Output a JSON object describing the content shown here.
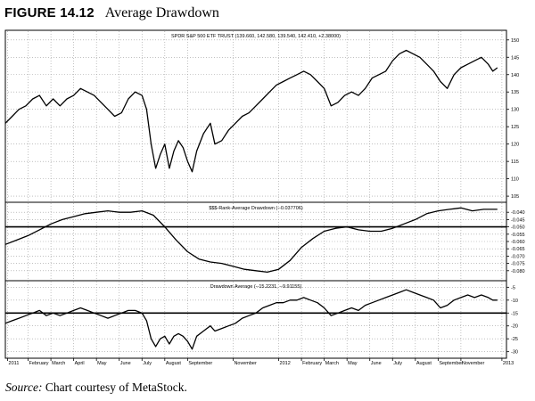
{
  "figure": {
    "label": "FIGURE 14.12",
    "title": "Average Drawdown",
    "source_label": "Source:",
    "source_text": "Chart courtesy of MetaStock."
  },
  "chart_data": [
    {
      "type": "line",
      "panel": "price",
      "title": "SPDR S&P 500 ETF TRUST (139.660, 142.580, 139.540, 142.410, +2.38000)",
      "ylim": [
        104,
        152
      ],
      "yticks": [
        105,
        110,
        115,
        120,
        125,
        130,
        135,
        140,
        145,
        150
      ],
      "ytick_labels": [
        "105",
        "110",
        "115",
        "120",
        "125",
        "130",
        "135",
        "140",
        "145",
        "150"
      ],
      "grid": true,
      "series": [
        {
          "values": [
            {
              "x": 0,
              "y": 126
            },
            {
              "x": 0.3,
              "y": 128
            },
            {
              "x": 0.6,
              "y": 130
            },
            {
              "x": 0.9,
              "y": 131
            },
            {
              "x": 1.2,
              "y": 133
            },
            {
              "x": 1.5,
              "y": 134
            },
            {
              "x": 1.8,
              "y": 131
            },
            {
              "x": 2.1,
              "y": 133
            },
            {
              "x": 2.4,
              "y": 131
            },
            {
              "x": 2.7,
              "y": 133
            },
            {
              "x": 3.0,
              "y": 134
            },
            {
              "x": 3.3,
              "y": 136
            },
            {
              "x": 3.6,
              "y": 135
            },
            {
              "x": 3.9,
              "y": 134
            },
            {
              "x": 4.2,
              "y": 132
            },
            {
              "x": 4.5,
              "y": 130
            },
            {
              "x": 4.8,
              "y": 128
            },
            {
              "x": 5.1,
              "y": 129
            },
            {
              "x": 5.4,
              "y": 133
            },
            {
              "x": 5.7,
              "y": 135
            },
            {
              "x": 6.0,
              "y": 134
            },
            {
              "x": 6.2,
              "y": 130
            },
            {
              "x": 6.4,
              "y": 120
            },
            {
              "x": 6.6,
              "y": 113
            },
            {
              "x": 6.8,
              "y": 117
            },
            {
              "x": 7.0,
              "y": 120
            },
            {
              "x": 7.2,
              "y": 113
            },
            {
              "x": 7.4,
              "y": 118
            },
            {
              "x": 7.6,
              "y": 121
            },
            {
              "x": 7.8,
              "y": 119
            },
            {
              "x": 8.0,
              "y": 115
            },
            {
              "x": 8.2,
              "y": 112
            },
            {
              "x": 8.4,
              "y": 118
            },
            {
              "x": 8.7,
              "y": 123
            },
            {
              "x": 9.0,
              "y": 126
            },
            {
              "x": 9.2,
              "y": 120
            },
            {
              "x": 9.5,
              "y": 121
            },
            {
              "x": 9.8,
              "y": 124
            },
            {
              "x": 10.1,
              "y": 126
            },
            {
              "x": 10.4,
              "y": 128
            },
            {
              "x": 10.7,
              "y": 129
            },
            {
              "x": 11.0,
              "y": 131
            },
            {
              "x": 11.3,
              "y": 133
            },
            {
              "x": 11.6,
              "y": 135
            },
            {
              "x": 11.9,
              "y": 137
            },
            {
              "x": 12.2,
              "y": 138
            },
            {
              "x": 12.5,
              "y": 139
            },
            {
              "x": 12.8,
              "y": 140
            },
            {
              "x": 13.1,
              "y": 141
            },
            {
              "x": 13.4,
              "y": 140
            },
            {
              "x": 13.7,
              "y": 138
            },
            {
              "x": 14.0,
              "y": 136
            },
            {
              "x": 14.3,
              "y": 131
            },
            {
              "x": 14.6,
              "y": 132
            },
            {
              "x": 14.9,
              "y": 134
            },
            {
              "x": 15.2,
              "y": 135
            },
            {
              "x": 15.5,
              "y": 134
            },
            {
              "x": 15.8,
              "y": 136
            },
            {
              "x": 16.1,
              "y": 139
            },
            {
              "x": 16.4,
              "y": 140
            },
            {
              "x": 16.7,
              "y": 141
            },
            {
              "x": 17.0,
              "y": 144
            },
            {
              "x": 17.3,
              "y": 146
            },
            {
              "x": 17.6,
              "y": 147
            },
            {
              "x": 17.9,
              "y": 146
            },
            {
              "x": 18.2,
              "y": 145
            },
            {
              "x": 18.5,
              "y": 143
            },
            {
              "x": 18.8,
              "y": 141
            },
            {
              "x": 19.1,
              "y": 138
            },
            {
              "x": 19.4,
              "y": 136
            },
            {
              "x": 19.7,
              "y": 140
            },
            {
              "x": 20.0,
              "y": 142
            },
            {
              "x": 20.3,
              "y": 143
            },
            {
              "x": 20.6,
              "y": 144
            },
            {
              "x": 20.9,
              "y": 145
            },
            {
              "x": 21.2,
              "y": 143
            },
            {
              "x": 21.4,
              "y": 141
            },
            {
              "x": 21.6,
              "y": 142
            }
          ]
        }
      ]
    },
    {
      "type": "line",
      "panel": "rank",
      "title": "$$$-Rank-Average Drawdown (--0.037706)",
      "ylim": [
        -0.085,
        -0.035
      ],
      "yticks": [
        -0.04,
        -0.045,
        -0.05,
        -0.055,
        -0.06,
        -0.065,
        -0.07,
        -0.075,
        -0.08
      ],
      "ytick_labels": [
        "-0.040",
        "-0.045",
        "-0.050",
        "-0.055",
        "-0.060",
        "-0.065",
        "-0.070",
        "-0.075",
        "-0.080"
      ],
      "reference_line": -0.05,
      "grid": true,
      "series": [
        {
          "values": [
            {
              "x": 0,
              "y": -0.062
            },
            {
              "x": 0.5,
              "y": -0.059
            },
            {
              "x": 1.0,
              "y": -0.056
            },
            {
              "x": 1.5,
              "y": -0.052
            },
            {
              "x": 2.0,
              "y": -0.048
            },
            {
              "x": 2.5,
              "y": -0.045
            },
            {
              "x": 3.0,
              "y": -0.043
            },
            {
              "x": 3.5,
              "y": -0.041
            },
            {
              "x": 4.0,
              "y": -0.04
            },
            {
              "x": 4.5,
              "y": -0.039
            },
            {
              "x": 5.0,
              "y": -0.04
            },
            {
              "x": 5.5,
              "y": -0.04
            },
            {
              "x": 6.0,
              "y": -0.039
            },
            {
              "x": 6.5,
              "y": -0.042
            },
            {
              "x": 7.0,
              "y": -0.05
            },
            {
              "x": 7.5,
              "y": -0.059
            },
            {
              "x": 8.0,
              "y": -0.067
            },
            {
              "x": 8.5,
              "y": -0.072
            },
            {
              "x": 9.0,
              "y": -0.074
            },
            {
              "x": 9.5,
              "y": -0.075
            },
            {
              "x": 10.0,
              "y": -0.077
            },
            {
              "x": 10.5,
              "y": -0.079
            },
            {
              "x": 11.0,
              "y": -0.08
            },
            {
              "x": 11.5,
              "y": -0.081
            },
            {
              "x": 12.0,
              "y": -0.079
            },
            {
              "x": 12.5,
              "y": -0.073
            },
            {
              "x": 13.0,
              "y": -0.064
            },
            {
              "x": 13.5,
              "y": -0.058
            },
            {
              "x": 14.0,
              "y": -0.053
            },
            {
              "x": 14.5,
              "y": -0.051
            },
            {
              "x": 15.0,
              "y": -0.05
            },
            {
              "x": 15.5,
              "y": -0.052
            },
            {
              "x": 16.0,
              "y": -0.053
            },
            {
              "x": 16.5,
              "y": -0.053
            },
            {
              "x": 17.0,
              "y": -0.051
            },
            {
              "x": 17.5,
              "y": -0.048
            },
            {
              "x": 18.0,
              "y": -0.045
            },
            {
              "x": 18.5,
              "y": -0.041
            },
            {
              "x": 19.0,
              "y": -0.039
            },
            {
              "x": 19.5,
              "y": -0.038
            },
            {
              "x": 20.0,
              "y": -0.037
            },
            {
              "x": 20.5,
              "y": -0.039
            },
            {
              "x": 21.0,
              "y": -0.038
            },
            {
              "x": 21.6,
              "y": -0.038
            }
          ]
        }
      ]
    },
    {
      "type": "line",
      "panel": "drawdown",
      "title": "Drawdown Average (--15.2231, --9.91155)",
      "ylim": [
        -31.5,
        -3.5
      ],
      "yticks": [
        -5,
        -10,
        -15,
        -20,
        -25,
        -30
      ],
      "ytick_labels": [
        "-5",
        "-10",
        "-15",
        "-20",
        "-25",
        "-30"
      ],
      "reference_line": -15,
      "grid": true,
      "series": [
        {
          "values": [
            {
              "x": 0,
              "y": -19
            },
            {
              "x": 0.3,
              "y": -18
            },
            {
              "x": 0.6,
              "y": -17
            },
            {
              "x": 0.9,
              "y": -16
            },
            {
              "x": 1.2,
              "y": -15
            },
            {
              "x": 1.5,
              "y": -14
            },
            {
              "x": 1.8,
              "y": -16
            },
            {
              "x": 2.1,
              "y": -15
            },
            {
              "x": 2.4,
              "y": -16
            },
            {
              "x": 2.7,
              "y": -15
            },
            {
              "x": 3.0,
              "y": -14
            },
            {
              "x": 3.3,
              "y": -13
            },
            {
              "x": 3.6,
              "y": -14
            },
            {
              "x": 3.9,
              "y": -15
            },
            {
              "x": 4.2,
              "y": -16
            },
            {
              "x": 4.5,
              "y": -17
            },
            {
              "x": 4.8,
              "y": -16
            },
            {
              "x": 5.1,
              "y": -15
            },
            {
              "x": 5.4,
              "y": -14
            },
            {
              "x": 5.7,
              "y": -14
            },
            {
              "x": 6.0,
              "y": -15
            },
            {
              "x": 6.2,
              "y": -18
            },
            {
              "x": 6.4,
              "y": -25
            },
            {
              "x": 6.6,
              "y": -28
            },
            {
              "x": 6.8,
              "y": -25
            },
            {
              "x": 7.0,
              "y": -24
            },
            {
              "x": 7.2,
              "y": -27
            },
            {
              "x": 7.4,
              "y": -24
            },
            {
              "x": 7.6,
              "y": -23
            },
            {
              "x": 7.8,
              "y": -24
            },
            {
              "x": 8.0,
              "y": -26
            },
            {
              "x": 8.2,
              "y": -29
            },
            {
              "x": 8.4,
              "y": -24
            },
            {
              "x": 8.7,
              "y": -22
            },
            {
              "x": 9.0,
              "y": -20
            },
            {
              "x": 9.2,
              "y": -22
            },
            {
              "x": 9.5,
              "y": -21
            },
            {
              "x": 9.8,
              "y": -20
            },
            {
              "x": 10.1,
              "y": -19
            },
            {
              "x": 10.4,
              "y": -17
            },
            {
              "x": 10.7,
              "y": -16
            },
            {
              "x": 11.0,
              "y": -15
            },
            {
              "x": 11.3,
              "y": -13
            },
            {
              "x": 11.6,
              "y": -12
            },
            {
              "x": 11.9,
              "y": -11
            },
            {
              "x": 12.2,
              "y": -11
            },
            {
              "x": 12.5,
              "y": -10
            },
            {
              "x": 12.8,
              "y": -10
            },
            {
              "x": 13.1,
              "y": -9
            },
            {
              "x": 13.4,
              "y": -10
            },
            {
              "x": 13.7,
              "y": -11
            },
            {
              "x": 14.0,
              "y": -13
            },
            {
              "x": 14.3,
              "y": -16
            },
            {
              "x": 14.6,
              "y": -15
            },
            {
              "x": 14.9,
              "y": -14
            },
            {
              "x": 15.2,
              "y": -13
            },
            {
              "x": 15.5,
              "y": -14
            },
            {
              "x": 15.8,
              "y": -12
            },
            {
              "x": 16.1,
              "y": -11
            },
            {
              "x": 16.4,
              "y": -10
            },
            {
              "x": 16.7,
              "y": -9
            },
            {
              "x": 17.0,
              "y": -8
            },
            {
              "x": 17.3,
              "y": -7
            },
            {
              "x": 17.6,
              "y": -6
            },
            {
              "x": 17.9,
              "y": -7
            },
            {
              "x": 18.2,
              "y": -8
            },
            {
              "x": 18.5,
              "y": -9
            },
            {
              "x": 18.8,
              "y": -10
            },
            {
              "x": 19.1,
              "y": -13
            },
            {
              "x": 19.4,
              "y": -12
            },
            {
              "x": 19.7,
              "y": -10
            },
            {
              "x": 20.0,
              "y": -9
            },
            {
              "x": 20.3,
              "y": -8
            },
            {
              "x": 20.6,
              "y": -9
            },
            {
              "x": 20.9,
              "y": -8
            },
            {
              "x": 21.2,
              "y": -9
            },
            {
              "x": 21.4,
              "y": -10
            },
            {
              "x": 21.6,
              "y": -10
            }
          ]
        }
      ]
    }
  ],
  "x_axis": {
    "x_unit": "months since Jan 2011",
    "xlim": [
      0,
      22
    ],
    "tick_labels": [
      {
        "x": 0.1,
        "label": "2011"
      },
      {
        "x": 1.0,
        "label": "February"
      },
      {
        "x": 2.0,
        "label": "March"
      },
      {
        "x": 3.0,
        "label": "April"
      },
      {
        "x": 4.0,
        "label": "May"
      },
      {
        "x": 5.0,
        "label": "June"
      },
      {
        "x": 6.0,
        "label": "July"
      },
      {
        "x": 7.0,
        "label": "August"
      },
      {
        "x": 8.0,
        "label": "September"
      },
      {
        "x": 10.0,
        "label": "November"
      },
      {
        "x": 12.0,
        "label": "2012"
      },
      {
        "x": 13.0,
        "label": "February"
      },
      {
        "x": 14.0,
        "label": "March"
      },
      {
        "x": 15.0,
        "label": "May"
      },
      {
        "x": 16.0,
        "label": "June"
      },
      {
        "x": 17.0,
        "label": "July"
      },
      {
        "x": 18.0,
        "label": "August"
      },
      {
        "x": 19.0,
        "label": "September"
      },
      {
        "x": 20.0,
        "label": "November"
      },
      {
        "x": 21.8,
        "label": "2013"
      }
    ]
  }
}
